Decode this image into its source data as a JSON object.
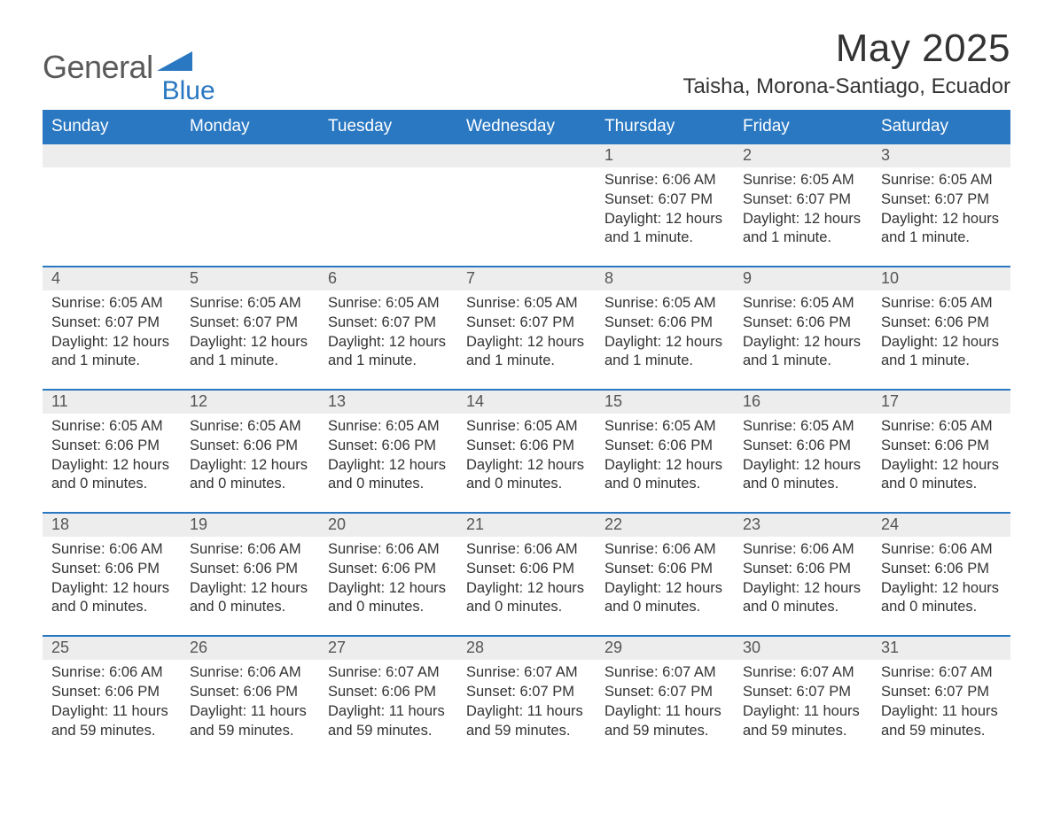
{
  "logo": {
    "text1": "General",
    "text2": "Blue",
    "shape_color": "#2a78c2",
    "text1_color": "#5a5a5a",
    "text2_color": "#2a78c2"
  },
  "title": "May 2025",
  "location": "Taisha, Morona-Santiago, Ecuador",
  "colors": {
    "header_bg": "#2a78c2",
    "header_text": "#ffffff",
    "daynum_bg": "#ededed",
    "daynum_border": "#2a78c2",
    "body_text": "#333333",
    "page_bg": "#ffffff"
  },
  "fonts": {
    "title_size_pt": 33,
    "location_size_pt": 18,
    "header_size_pt": 14,
    "daynum_size_pt": 14,
    "cell_size_pt": 12
  },
  "day_headers": [
    "Sunday",
    "Monday",
    "Tuesday",
    "Wednesday",
    "Thursday",
    "Friday",
    "Saturday"
  ],
  "weeks": [
    {
      "days": [
        null,
        null,
        null,
        null,
        {
          "n": "1",
          "sunrise": "6:06 AM",
          "sunset": "6:07 PM",
          "daylight": "12 hours and 1 minute."
        },
        {
          "n": "2",
          "sunrise": "6:05 AM",
          "sunset": "6:07 PM",
          "daylight": "12 hours and 1 minute."
        },
        {
          "n": "3",
          "sunrise": "6:05 AM",
          "sunset": "6:07 PM",
          "daylight": "12 hours and 1 minute."
        }
      ]
    },
    {
      "days": [
        {
          "n": "4",
          "sunrise": "6:05 AM",
          "sunset": "6:07 PM",
          "daylight": "12 hours and 1 minute."
        },
        {
          "n": "5",
          "sunrise": "6:05 AM",
          "sunset": "6:07 PM",
          "daylight": "12 hours and 1 minute."
        },
        {
          "n": "6",
          "sunrise": "6:05 AM",
          "sunset": "6:07 PM",
          "daylight": "12 hours and 1 minute."
        },
        {
          "n": "7",
          "sunrise": "6:05 AM",
          "sunset": "6:07 PM",
          "daylight": "12 hours and 1 minute."
        },
        {
          "n": "8",
          "sunrise": "6:05 AM",
          "sunset": "6:06 PM",
          "daylight": "12 hours and 1 minute."
        },
        {
          "n": "9",
          "sunrise": "6:05 AM",
          "sunset": "6:06 PM",
          "daylight": "12 hours and 1 minute."
        },
        {
          "n": "10",
          "sunrise": "6:05 AM",
          "sunset": "6:06 PM",
          "daylight": "12 hours and 1 minute."
        }
      ]
    },
    {
      "days": [
        {
          "n": "11",
          "sunrise": "6:05 AM",
          "sunset": "6:06 PM",
          "daylight": "12 hours and 0 minutes."
        },
        {
          "n": "12",
          "sunrise": "6:05 AM",
          "sunset": "6:06 PM",
          "daylight": "12 hours and 0 minutes."
        },
        {
          "n": "13",
          "sunrise": "6:05 AM",
          "sunset": "6:06 PM",
          "daylight": "12 hours and 0 minutes."
        },
        {
          "n": "14",
          "sunrise": "6:05 AM",
          "sunset": "6:06 PM",
          "daylight": "12 hours and 0 minutes."
        },
        {
          "n": "15",
          "sunrise": "6:05 AM",
          "sunset": "6:06 PM",
          "daylight": "12 hours and 0 minutes."
        },
        {
          "n": "16",
          "sunrise": "6:05 AM",
          "sunset": "6:06 PM",
          "daylight": "12 hours and 0 minutes."
        },
        {
          "n": "17",
          "sunrise": "6:05 AM",
          "sunset": "6:06 PM",
          "daylight": "12 hours and 0 minutes."
        }
      ]
    },
    {
      "days": [
        {
          "n": "18",
          "sunrise": "6:06 AM",
          "sunset": "6:06 PM",
          "daylight": "12 hours and 0 minutes."
        },
        {
          "n": "19",
          "sunrise": "6:06 AM",
          "sunset": "6:06 PM",
          "daylight": "12 hours and 0 minutes."
        },
        {
          "n": "20",
          "sunrise": "6:06 AM",
          "sunset": "6:06 PM",
          "daylight": "12 hours and 0 minutes."
        },
        {
          "n": "21",
          "sunrise": "6:06 AM",
          "sunset": "6:06 PM",
          "daylight": "12 hours and 0 minutes."
        },
        {
          "n": "22",
          "sunrise": "6:06 AM",
          "sunset": "6:06 PM",
          "daylight": "12 hours and 0 minutes."
        },
        {
          "n": "23",
          "sunrise": "6:06 AM",
          "sunset": "6:06 PM",
          "daylight": "12 hours and 0 minutes."
        },
        {
          "n": "24",
          "sunrise": "6:06 AM",
          "sunset": "6:06 PM",
          "daylight": "12 hours and 0 minutes."
        }
      ]
    },
    {
      "days": [
        {
          "n": "25",
          "sunrise": "6:06 AM",
          "sunset": "6:06 PM",
          "daylight": "11 hours and 59 minutes."
        },
        {
          "n": "26",
          "sunrise": "6:06 AM",
          "sunset": "6:06 PM",
          "daylight": "11 hours and 59 minutes."
        },
        {
          "n": "27",
          "sunrise": "6:07 AM",
          "sunset": "6:06 PM",
          "daylight": "11 hours and 59 minutes."
        },
        {
          "n": "28",
          "sunrise": "6:07 AM",
          "sunset": "6:07 PM",
          "daylight": "11 hours and 59 minutes."
        },
        {
          "n": "29",
          "sunrise": "6:07 AM",
          "sunset": "6:07 PM",
          "daylight": "11 hours and 59 minutes."
        },
        {
          "n": "30",
          "sunrise": "6:07 AM",
          "sunset": "6:07 PM",
          "daylight": "11 hours and 59 minutes."
        },
        {
          "n": "31",
          "sunrise": "6:07 AM",
          "sunset": "6:07 PM",
          "daylight": "11 hours and 59 minutes."
        }
      ]
    }
  ],
  "labels": {
    "sunrise": "Sunrise: ",
    "sunset": "Sunset: ",
    "daylight": "Daylight: "
  }
}
